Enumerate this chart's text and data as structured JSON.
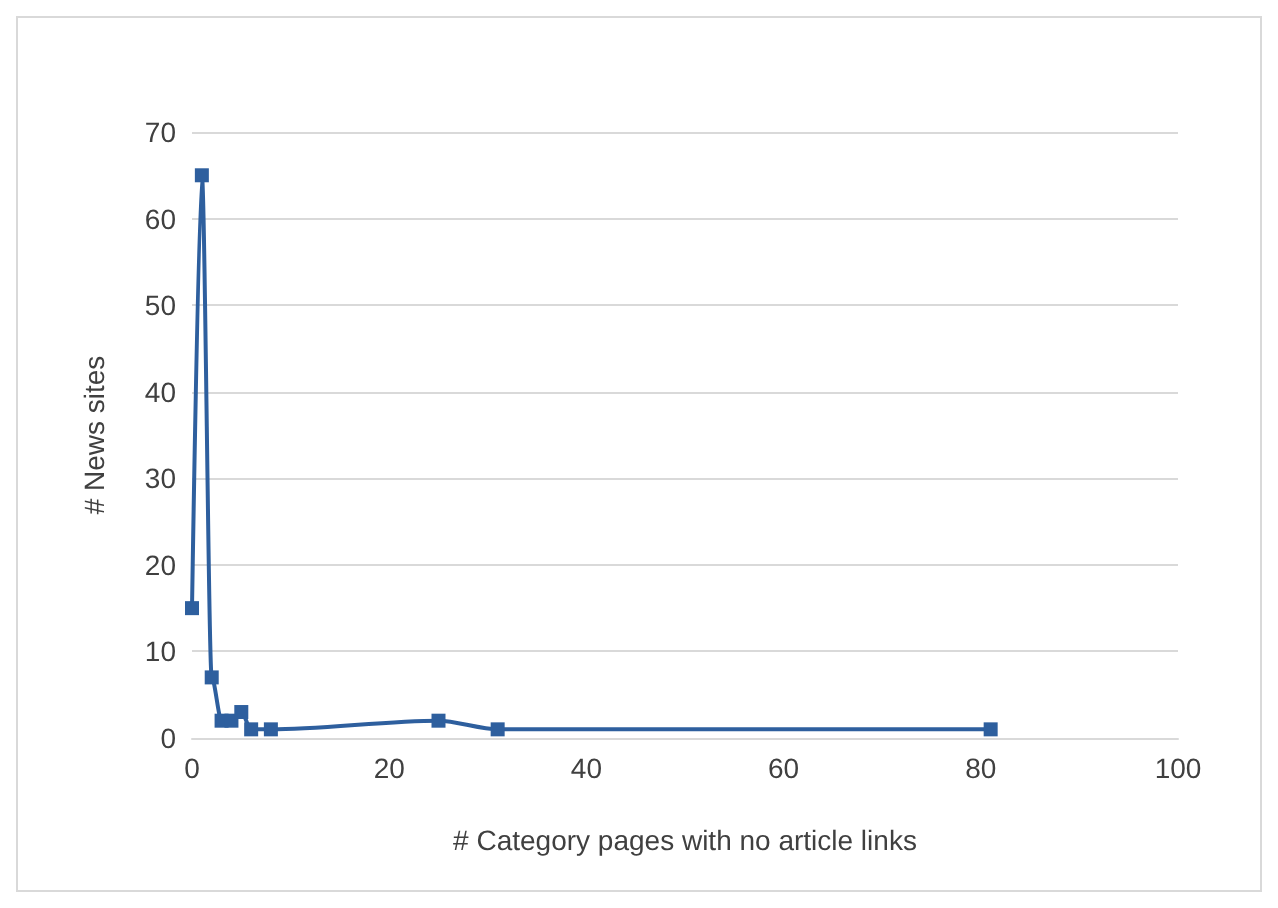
{
  "chart_data": {
    "type": "line",
    "xlabel": "# Category pages with no article links",
    "ylabel": "# News sites",
    "x": [
      0,
      1,
      2,
      3,
      4,
      5,
      6,
      8,
      25,
      31,
      81
    ],
    "series": [
      {
        "color": "#2e5f9e",
        "values": [
          15,
          65,
          7,
          2,
          2,
          3,
          1,
          1,
          2,
          1,
          1
        ]
      }
    ],
    "xlim": [
      0,
      100
    ],
    "xticks": [
      0,
      20,
      40,
      60,
      80,
      100
    ],
    "ylim": [
      0,
      70
    ],
    "yticks": [
      0,
      10,
      20,
      30,
      40,
      50,
      60,
      70
    ],
    "grid": "y",
    "marker": "square",
    "line_style": "solid"
  }
}
